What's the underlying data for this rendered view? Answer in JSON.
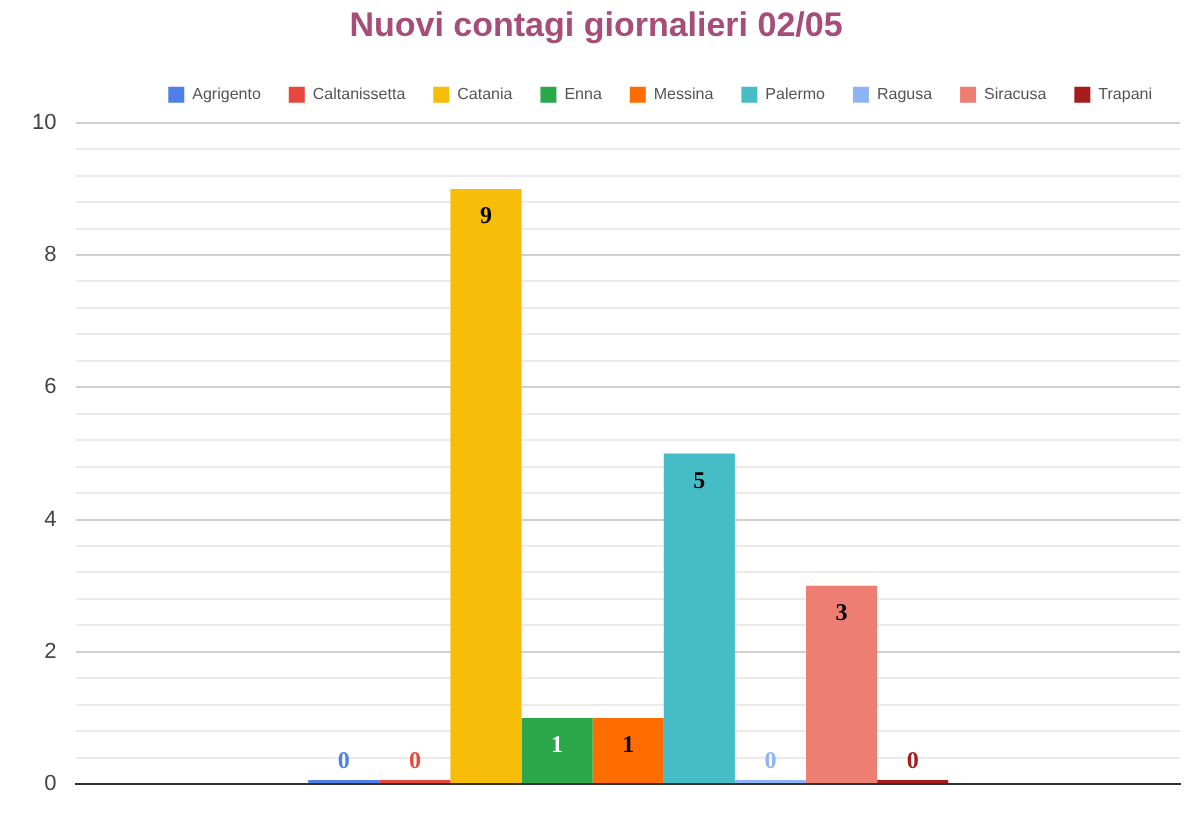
{
  "chart_data": {
    "type": "bar",
    "title": "Nuovi contagi giornalieri 02/05",
    "categories": [
      null
    ],
    "series": [
      {
        "name": "Agrigento",
        "color": "#4f80e8",
        "values": [
          0
        ]
      },
      {
        "name": "Caltanissetta",
        "color": "#e8473b",
        "values": [
          0
        ]
      },
      {
        "name": "Catania",
        "color": "#f8bd08",
        "values": [
          9
        ]
      },
      {
        "name": "Enna",
        "color": "#2aa84a",
        "values": [
          1
        ]
      },
      {
        "name": "Messina",
        "color": "#ff6d01",
        "values": [
          1
        ]
      },
      {
        "name": "Palermo",
        "color": "#46bdc6",
        "values": [
          5
        ]
      },
      {
        "name": "Ragusa",
        "color": "#8fb4f5",
        "values": [
          0
        ]
      },
      {
        "name": "Siracusa",
        "color": "#ee7d72",
        "values": [
          3
        ]
      },
      {
        "name": "Trapani",
        "color": "#a61c1c",
        "values": [
          0
        ]
      }
    ],
    "ylim": [
      0,
      10
    ],
    "yticks": [
      0,
      {
        "value": 0.4,
        "label": null
      },
      {
        "value": 0.8,
        "label": null
      },
      {
        "value": 1.2,
        "label": null
      },
      {
        "value": 1.6,
        "label": null
      },
      2,
      {
        "value": 2.4,
        "label": null
      },
      {
        "value": 2.8,
        "label": null
      },
      {
        "value": 3.2,
        "label": null
      },
      {
        "value": 3.6,
        "label": null
      },
      4,
      {
        "value": 4.4,
        "label": null
      },
      {
        "value": 4.8,
        "label": null
      },
      {
        "value": 5.2,
        "label": null
      },
      {
        "value": 5.6,
        "label": null
      },
      6,
      {
        "value": 6.4,
        "label": null
      },
      {
        "value": 6.8,
        "label": null
      },
      {
        "value": 7.2,
        "label": null
      },
      {
        "value": 7.6,
        "label": null
      },
      8,
      {
        "value": 8.4,
        "label": null
      },
      {
        "value": 8.8,
        "label": null
      },
      {
        "value": 9.2,
        "label": null
      },
      {
        "value": 9.6,
        "label": null
      },
      10
    ],
    "grid": "y",
    "legend": "top right",
    "tick_labels": "y",
    "data_labels": true
  }
}
